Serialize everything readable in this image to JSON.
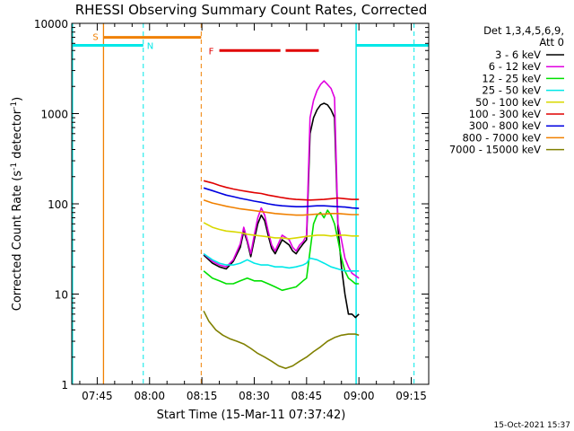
{
  "chart_data": {
    "type": "line",
    "title": "RHESSI Observing Summary Count Rates, Corrected",
    "xlabel": "Start Time (15-Mar-11 07:37:42)",
    "ylabel": "Corrected Count Rate (s",
    "ylabel_sup": "-1",
    "ylabel_tail": " detector",
    "ylabel_sup2": "-1",
    "ylabel_close": ")",
    "xlim_minutes": [
      457.7,
      560
    ],
    "ylim": [
      1,
      10000
    ],
    "yscale": "log",
    "x_ticks": [
      {
        "m": 465,
        "label": "07:45"
      },
      {
        "m": 480,
        "label": "08:00"
      },
      {
        "m": 495,
        "label": "08:15"
      },
      {
        "m": 510,
        "label": "08:30"
      },
      {
        "m": 525,
        "label": "08:45"
      },
      {
        "m": 540,
        "label": "09:00"
      },
      {
        "m": 555,
        "label": "09:15"
      }
    ],
    "y_ticks": [
      {
        "v": 1,
        "label": "1"
      },
      {
        "v": 10,
        "label": "10"
      },
      {
        "v": 100,
        "label": "100"
      },
      {
        "v": 1000,
        "label": "1000"
      },
      {
        "v": 10000,
        "label": "10000"
      }
    ],
    "legend": {
      "header1": "Det 1,3,4,5,6,9,",
      "header2": "Att 0",
      "entries": [
        {
          "label": "3 - 6 keV",
          "color": "#000000"
        },
        {
          "label": "6 - 12 keV",
          "color": "#e000e0"
        },
        {
          "label": "12 - 25 keV",
          "color": "#00e000"
        },
        {
          "label": "25 - 50 keV",
          "color": "#00e8e8"
        },
        {
          "label": "50 - 100 keV",
          "color": "#d8d800"
        },
        {
          "label": "100 - 300 keV",
          "color": "#e00000"
        },
        {
          "label": "300 - 800 keV",
          "color": "#0000e0"
        },
        {
          "label": "800 - 7000 keV",
          "color": "#f08000"
        },
        {
          "label": "7000 - 15000 keV",
          "color": "#808000"
        }
      ]
    },
    "series": [
      {
        "name": "3 - 6 keV",
        "color": "#000000",
        "points": [
          [
            495.5,
            27
          ],
          [
            498,
            22
          ],
          [
            500,
            20
          ],
          [
            502,
            19
          ],
          [
            504,
            23
          ],
          [
            506,
            33
          ],
          [
            507,
            50
          ],
          [
            508,
            38
          ],
          [
            509,
            26
          ],
          [
            510,
            40
          ],
          [
            511,
            60
          ],
          [
            512,
            75
          ],
          [
            513,
            65
          ],
          [
            514,
            45
          ],
          [
            515,
            32
          ],
          [
            516,
            28
          ],
          [
            518,
            40
          ],
          [
            520,
            35
          ],
          [
            521,
            30
          ],
          [
            522,
            28
          ],
          [
            523,
            32
          ],
          [
            524,
            36
          ],
          [
            525,
            40
          ],
          [
            526,
            600
          ],
          [
            527,
            900
          ],
          [
            528,
            1100
          ],
          [
            529,
            1250
          ],
          [
            530,
            1300
          ],
          [
            531,
            1250
          ],
          [
            532,
            1100
          ],
          [
            533,
            900
          ],
          [
            534,
            55
          ],
          [
            535,
            20
          ],
          [
            536,
            10
          ],
          [
            537,
            6
          ],
          [
            538,
            6
          ],
          [
            539,
            5.5
          ],
          [
            540,
            6
          ]
        ]
      },
      {
        "name": "6 - 12 keV",
        "color": "#e000e0",
        "points": [
          [
            495.5,
            28
          ],
          [
            498,
            23
          ],
          [
            500,
            21
          ],
          [
            502,
            20
          ],
          [
            504,
            24
          ],
          [
            506,
            36
          ],
          [
            507,
            55
          ],
          [
            508,
            40
          ],
          [
            509,
            28
          ],
          [
            510,
            45
          ],
          [
            511,
            70
          ],
          [
            512,
            90
          ],
          [
            513,
            75
          ],
          [
            514,
            50
          ],
          [
            515,
            35
          ],
          [
            516,
            30
          ],
          [
            518,
            45
          ],
          [
            520,
            40
          ],
          [
            521,
            33
          ],
          [
            522,
            30
          ],
          [
            523,
            35
          ],
          [
            524,
            38
          ],
          [
            525,
            45
          ],
          [
            526,
            900
          ],
          [
            527,
            1400
          ],
          [
            528,
            1800
          ],
          [
            529,
            2100
          ],
          [
            530,
            2300
          ],
          [
            531,
            2100
          ],
          [
            532,
            1900
          ],
          [
            533,
            1500
          ],
          [
            534,
            60
          ],
          [
            535,
            40
          ],
          [
            536,
            25
          ],
          [
            537,
            20
          ],
          [
            538,
            17
          ],
          [
            539,
            16
          ],
          [
            540,
            15
          ]
        ]
      },
      {
        "name": "12 - 25 keV",
        "color": "#00e000",
        "points": [
          [
            495.5,
            18
          ],
          [
            498,
            15
          ],
          [
            500,
            14
          ],
          [
            502,
            13
          ],
          [
            504,
            13
          ],
          [
            506,
            14
          ],
          [
            508,
            15
          ],
          [
            510,
            14
          ],
          [
            512,
            14
          ],
          [
            514,
            13
          ],
          [
            516,
            12
          ],
          [
            518,
            11
          ],
          [
            520,
            11.5
          ],
          [
            522,
            12
          ],
          [
            524,
            14
          ],
          [
            525,
            15
          ],
          [
            526,
            30
          ],
          [
            527,
            60
          ],
          [
            528,
            75
          ],
          [
            529,
            80
          ],
          [
            530,
            70
          ],
          [
            531,
            85
          ],
          [
            532,
            75
          ],
          [
            533,
            60
          ],
          [
            534,
            40
          ],
          [
            535,
            25
          ],
          [
            536,
            18
          ],
          [
            537,
            15
          ],
          [
            538,
            14
          ],
          [
            539,
            13
          ],
          [
            540,
            13
          ]
        ]
      },
      {
        "name": "25 - 50 keV",
        "color": "#00e8e8",
        "points": [
          [
            495.5,
            28
          ],
          [
            498,
            24
          ],
          [
            500,
            22
          ],
          [
            502,
            21
          ],
          [
            504,
            21
          ],
          [
            506,
            22
          ],
          [
            508,
            24
          ],
          [
            510,
            22
          ],
          [
            512,
            21
          ],
          [
            514,
            21
          ],
          [
            516,
            20
          ],
          [
            518,
            20
          ],
          [
            520,
            19.5
          ],
          [
            522,
            20
          ],
          [
            524,
            21
          ],
          [
            525,
            22
          ],
          [
            526,
            25
          ],
          [
            528,
            24
          ],
          [
            530,
            22
          ],
          [
            532,
            20
          ],
          [
            534,
            19
          ],
          [
            536,
            18
          ],
          [
            538,
            18
          ],
          [
            540,
            18
          ]
        ]
      },
      {
        "name": "50 - 100 keV",
        "color": "#d8d800",
        "points": [
          [
            495.5,
            62
          ],
          [
            498,
            55
          ],
          [
            500,
            52
          ],
          [
            502,
            50
          ],
          [
            504,
            49
          ],
          [
            506,
            48
          ],
          [
            508,
            46
          ],
          [
            510,
            45
          ],
          [
            512,
            44
          ],
          [
            514,
            43
          ],
          [
            516,
            42
          ],
          [
            518,
            42
          ],
          [
            520,
            41
          ],
          [
            522,
            42
          ],
          [
            524,
            43
          ],
          [
            526,
            44
          ],
          [
            528,
            45
          ],
          [
            530,
            45
          ],
          [
            532,
            44
          ],
          [
            534,
            45
          ],
          [
            536,
            45
          ],
          [
            538,
            44
          ],
          [
            540,
            44
          ]
        ]
      },
      {
        "name": "100 - 300 keV",
        "color": "#e00000",
        "points": [
          [
            495.5,
            180
          ],
          [
            498,
            170
          ],
          [
            500,
            160
          ],
          [
            502,
            152
          ],
          [
            504,
            146
          ],
          [
            506,
            141
          ],
          [
            508,
            137
          ],
          [
            510,
            133
          ],
          [
            512,
            130
          ],
          [
            514,
            125
          ],
          [
            516,
            121
          ],
          [
            518,
            117
          ],
          [
            520,
            114
          ],
          [
            522,
            112
          ],
          [
            524,
            111
          ],
          [
            526,
            110
          ],
          [
            528,
            111
          ],
          [
            530,
            112
          ],
          [
            532,
            114
          ],
          [
            534,
            116
          ],
          [
            536,
            114
          ],
          [
            538,
            112
          ],
          [
            540,
            112
          ]
        ]
      },
      {
        "name": "300 - 800 keV",
        "color": "#0000e0",
        "points": [
          [
            495.5,
            150
          ],
          [
            498,
            140
          ],
          [
            500,
            132
          ],
          [
            502,
            125
          ],
          [
            504,
            120
          ],
          [
            506,
            115
          ],
          [
            508,
            111
          ],
          [
            510,
            107
          ],
          [
            512,
            104
          ],
          [
            514,
            100
          ],
          [
            516,
            97
          ],
          [
            518,
            95
          ],
          [
            520,
            94
          ],
          [
            522,
            93
          ],
          [
            524,
            93
          ],
          [
            526,
            94
          ],
          [
            528,
            95
          ],
          [
            530,
            95
          ],
          [
            532,
            94
          ],
          [
            534,
            93
          ],
          [
            536,
            92
          ],
          [
            538,
            90
          ],
          [
            540,
            89
          ]
        ]
      },
      {
        "name": "800 - 7000 keV",
        "color": "#f08000",
        "points": [
          [
            495.5,
            110
          ],
          [
            498,
            102
          ],
          [
            500,
            98
          ],
          [
            502,
            94
          ],
          [
            504,
            91
          ],
          [
            506,
            88
          ],
          [
            508,
            86
          ],
          [
            510,
            84
          ],
          [
            512,
            82
          ],
          [
            514,
            80
          ],
          [
            516,
            78
          ],
          [
            518,
            77
          ],
          [
            520,
            76
          ],
          [
            522,
            75
          ],
          [
            524,
            75
          ],
          [
            526,
            76
          ],
          [
            528,
            77
          ],
          [
            530,
            77
          ],
          [
            532,
            78
          ],
          [
            534,
            78
          ],
          [
            536,
            77
          ],
          [
            538,
            76
          ],
          [
            540,
            76
          ]
        ]
      },
      {
        "name": "7000 - 15000 keV",
        "color": "#808000",
        "points": [
          [
            495.5,
            6.5
          ],
          [
            497,
            5
          ],
          [
            499,
            4
          ],
          [
            501,
            3.5
          ],
          [
            503,
            3.2
          ],
          [
            505,
            3
          ],
          [
            507,
            2.8
          ],
          [
            509,
            2.5
          ],
          [
            511,
            2.2
          ],
          [
            513,
            2
          ],
          [
            515,
            1.8
          ],
          [
            517,
            1.6
          ],
          [
            519,
            1.5
          ],
          [
            521,
            1.6
          ],
          [
            523,
            1.8
          ],
          [
            525,
            2
          ],
          [
            527,
            2.3
          ],
          [
            529,
            2.6
          ],
          [
            531,
            3
          ],
          [
            533,
            3.3
          ],
          [
            535,
            3.5
          ],
          [
            537,
            3.6
          ],
          [
            539,
            3.6
          ],
          [
            540,
            3.5
          ]
        ]
      }
    ],
    "markers": {
      "cyan_lines_m": [
        457.9,
        539.2
      ],
      "cyan_dash_m": [
        478.2,
        555.8
      ],
      "orange_line_m": 466.8,
      "orange_dash_m": 494.8,
      "S_label": "S",
      "S_bar_m": [
        466.8,
        494.8
      ],
      "S_bar_v": 7000,
      "N_label": "N",
      "N_bar_segments": [
        [
          457.9,
          478.2
        ],
        [
          539.2,
          560
        ]
      ],
      "N_bar_v": 5700,
      "F_label": "F",
      "F_bar_segments": [
        [
          500,
          517.5
        ],
        [
          519,
          528.5
        ]
      ],
      "F_bar_v": 5000
    }
  },
  "footer": {
    "timestamp": "15-Oct-2021 15:37"
  }
}
